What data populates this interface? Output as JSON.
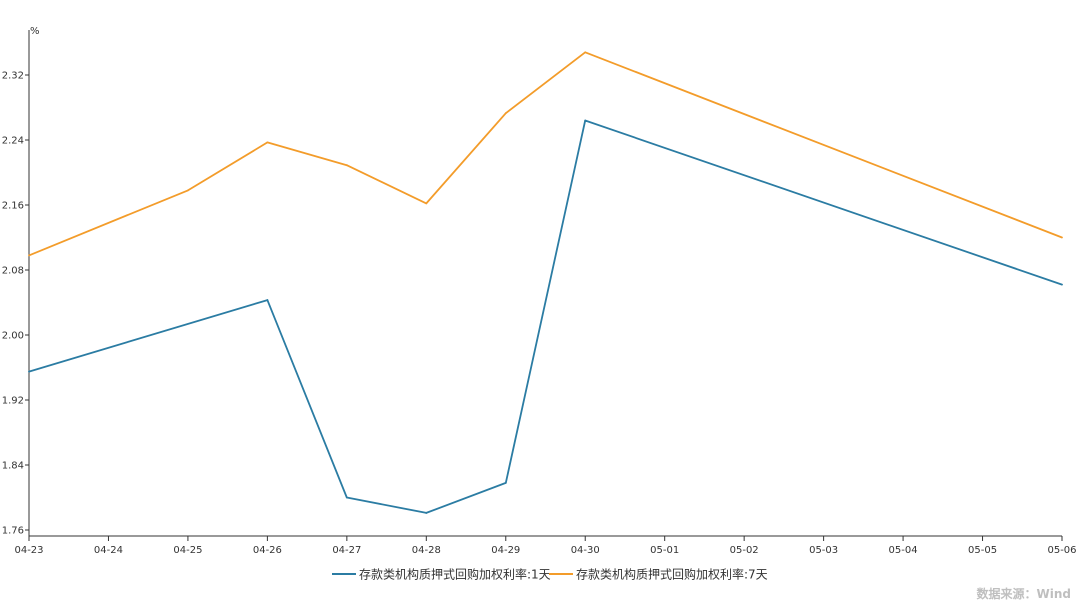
{
  "chart_data": {
    "type": "line",
    "y_unit": "%",
    "x": [
      "04-23",
      "04-24",
      "04-25",
      "04-26",
      "04-27",
      "04-28",
      "04-29",
      "04-30",
      "05-01",
      "05-02",
      "05-03",
      "05-04",
      "05-05",
      "05-06"
    ],
    "yticks": [
      "1.76",
      "1.84",
      "1.92",
      "2.00",
      "2.08",
      "2.16",
      "2.24",
      "2.32"
    ],
    "ylim": [
      1.76,
      2.37
    ],
    "grid": false,
    "legend_position": "bottom",
    "series": [
      {
        "name": "存款类机构质押式回购加权利率:1天",
        "color": "#2b7ca3",
        "points": [
          [
            "04-23",
            1.955
          ],
          [
            "04-26",
            2.043
          ],
          [
            "04-27",
            1.8
          ],
          [
            "04-28",
            1.781
          ],
          [
            "04-29",
            1.818
          ],
          [
            "04-30",
            2.264
          ],
          [
            "05-06",
            2.062
          ]
        ]
      },
      {
        "name": "存款类机构质押式回购加权利率:7天",
        "color": "#f39c2a",
        "points": [
          [
            "04-23",
            2.098
          ],
          [
            "04-25",
            2.178
          ],
          [
            "04-26",
            2.237
          ],
          [
            "04-27",
            2.209
          ],
          [
            "04-28",
            2.162
          ],
          [
            "04-29",
            2.273
          ],
          [
            "04-30",
            2.348
          ],
          [
            "05-06",
            2.12
          ]
        ]
      }
    ]
  },
  "source_note": "数据来源：Wind"
}
